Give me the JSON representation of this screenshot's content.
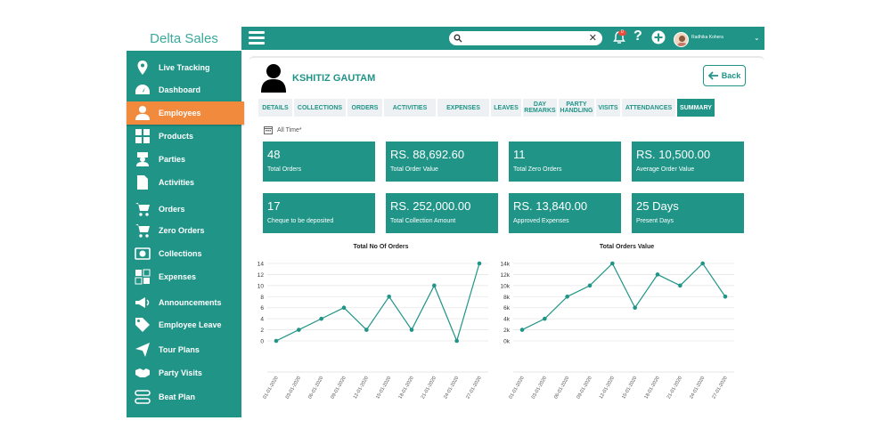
{
  "sidebar": {
    "brand": "Delta Sales",
    "items": [
      {
        "label": "Live Tracking",
        "icon": "location-pin-icon"
      },
      {
        "label": "Dashboard",
        "icon": "dashboard-gauge-icon"
      },
      {
        "label": "Employees",
        "icon": "employee-icon",
        "active": true
      },
      {
        "label": "Products",
        "icon": "products-grid-icon"
      },
      {
        "label": "Parties",
        "icon": "parties-icon"
      },
      {
        "label": "Activities",
        "icon": "document-icon"
      },
      {
        "label": "Orders",
        "icon": "cart-icon"
      },
      {
        "label": "Zero Orders",
        "icon": "cart-icon"
      },
      {
        "label": "Collections",
        "icon": "money-icon"
      },
      {
        "label": "Expenses",
        "icon": "expenses-icon"
      },
      {
        "label": "Announcements",
        "icon": "megaphone-icon"
      },
      {
        "label": "Employee Leave",
        "icon": "tag-icon"
      },
      {
        "label": "Tour Plans",
        "icon": "paper-plane-icon"
      },
      {
        "label": "Party Visits",
        "icon": "handshake-icon"
      },
      {
        "label": "Beat Plan",
        "icon": "beat-plan-icon"
      }
    ]
  },
  "topbar": {
    "search_value": "",
    "notification_count": "0",
    "user_name": "Radhika Kohera"
  },
  "employee": {
    "name": "KSHITIZ GAUTAM",
    "back_label": "Back"
  },
  "tabs": [
    {
      "label": "DETAILS"
    },
    {
      "label": "COLLECTIONS"
    },
    {
      "label": "ORDERS"
    },
    {
      "label": "ACTIVITIES"
    },
    {
      "label": "EXPENSES"
    },
    {
      "label": "LEAVES"
    },
    {
      "label": "DAY REMARKS"
    },
    {
      "label": "PARTY HANDLING"
    },
    {
      "label": "VISITS"
    },
    {
      "label": "ATTENDANCES"
    },
    {
      "label": "SUMMARY",
      "active": true
    }
  ],
  "filter": {
    "label": "All Time*"
  },
  "cards": [
    {
      "value": "48",
      "label": "Total Orders"
    },
    {
      "value": "RS. 88,692.60",
      "label": "Total Order Value"
    },
    {
      "value": "11",
      "label": "Total Zero Orders"
    },
    {
      "value": "RS. 10,500.00",
      "label": "Average Order Value"
    },
    {
      "value": "17",
      "label": "Cheque to be deposited"
    },
    {
      "value": "RS. 252,000.00",
      "label": "Total Collection Amount"
    },
    {
      "value": "RS. 13,840.00",
      "label": "Approved Expenses"
    },
    {
      "value": "25 Days",
      "label": "Present Days"
    }
  ],
  "chart_data": [
    {
      "type": "line",
      "title": "Total No Of Orders",
      "x": [
        "01-01-2020",
        "03-01-2020",
        "06-01-2020",
        "09-01-2020",
        "12-01-2020",
        "15-01-2020",
        "18-01-2020",
        "21-01-2020",
        "24-01-2020",
        "27-01-2020"
      ],
      "y": [
        0,
        2,
        4,
        6,
        2,
        8,
        2,
        10,
        0,
        14
      ],
      "yticks": [
        "0",
        "2",
        "4",
        "6",
        "8",
        "10",
        "12",
        "14"
      ],
      "ylim": [
        0,
        14
      ],
      "color": "#1f9487",
      "grid": true
    },
    {
      "type": "line",
      "title": "Total Orders Value",
      "x": [
        "01-01-2020",
        "03-01-2020",
        "06-01-2020",
        "09-01-2020",
        "12-01-2020",
        "15-01-2020",
        "18-01-2020",
        "21-01-2020",
        "24-01-2020",
        "27-01-2020"
      ],
      "y": [
        2000,
        4000,
        8000,
        10000,
        14000,
        6000,
        12000,
        10000,
        14000,
        8000
      ],
      "yticks": [
        "0k",
        "2k",
        "4k",
        "6k",
        "8k",
        "10k",
        "12k",
        "14k"
      ],
      "ylim": [
        0,
        14000
      ],
      "color": "#1f9487",
      "grid": true
    }
  ]
}
